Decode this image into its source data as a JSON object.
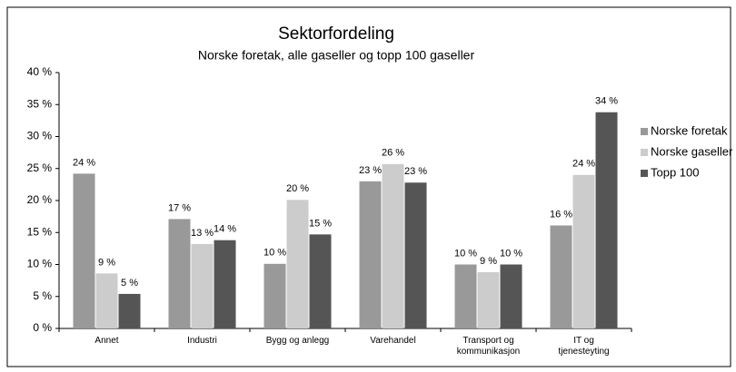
{
  "chart_data": {
    "type": "bar",
    "title": "Sektorfordeling",
    "subtitle": "Norske foretak, alle gaseller og topp 100 gaseller",
    "categories": [
      "Annet",
      "Industri",
      "Bygg og anlegg",
      "Varehandel",
      "Transport og\nkommunikasjon",
      "IT og\ntjenesteyting"
    ],
    "series": [
      {
        "name": "Norske foretak",
        "color": "#999999",
        "values": [
          24.2,
          17.1,
          10.1,
          23.0,
          10.0,
          16.1
        ],
        "value_labels": [
          "24 %",
          "17 %",
          "10 %",
          "23 %",
          "10 %",
          "16 %"
        ]
      },
      {
        "name": "Norske gaseller",
        "color": "#cccccc",
        "values": [
          8.6,
          13.2,
          20.1,
          25.7,
          8.8,
          24.0
        ],
        "value_labels": [
          "9 %",
          "13 %",
          "20 %",
          "26 %",
          "9 %",
          "24 %"
        ]
      },
      {
        "name": "Topp 100",
        "color": "#555555",
        "values": [
          5.4,
          13.8,
          14.7,
          22.8,
          10.0,
          33.8
        ],
        "value_labels": [
          "5 %",
          "14 %",
          "15 %",
          "23 %",
          "10 %",
          "34 %"
        ]
      }
    ],
    "ylim": [
      0,
      40
    ],
    "yticks": [
      {
        "value": 0,
        "label": "0 %"
      },
      {
        "value": 5,
        "label": "5 %"
      },
      {
        "value": 10,
        "label": "10 %"
      },
      {
        "value": 15,
        "label": "15 %"
      },
      {
        "value": 20,
        "label": "20 %"
      },
      {
        "value": 25,
        "label": "25 %"
      },
      {
        "value": 30,
        "label": "30 %"
      },
      {
        "value": 35,
        "label": "35 %"
      },
      {
        "value": 40,
        "label": "40 %"
      }
    ],
    "grid": false,
    "legend": "right"
  }
}
